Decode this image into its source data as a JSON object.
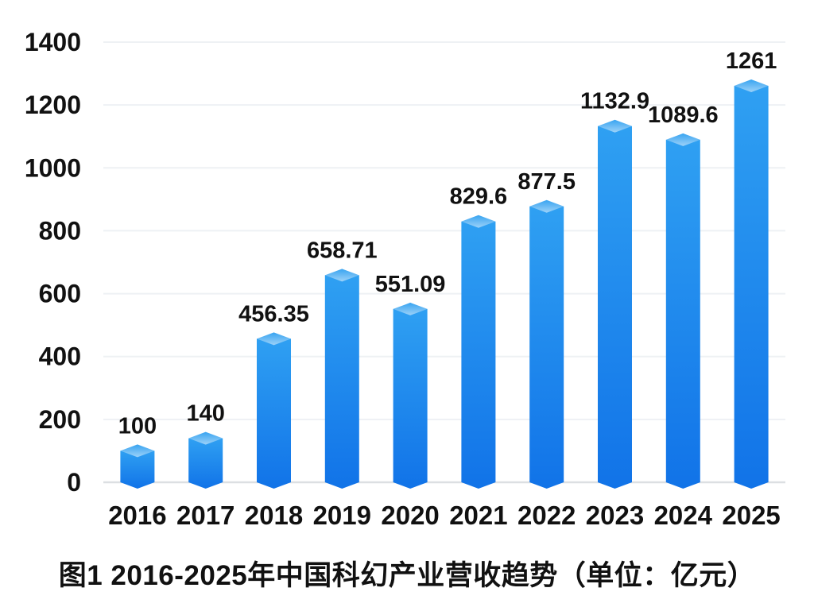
{
  "chart_data": {
    "type": "bar",
    "title": "图1 2016-2025年中国科幻产业营收趋势（单位：亿元）",
    "unit": "亿元",
    "categories": [
      "2016",
      "2017",
      "2018",
      "2019",
      "2020",
      "2021",
      "2022",
      "2023",
      "2024",
      "2025"
    ],
    "values": [
      100,
      140,
      456.35,
      658.71,
      551.09,
      829.6,
      877.5,
      1132.9,
      1089.6,
      1261
    ],
    "value_labels": [
      "100",
      "140",
      "456.35",
      "658.71",
      "551.09",
      "829.6",
      "877.5",
      "1132.9",
      "1089.6",
      "1261"
    ],
    "yticks": [
      0,
      200,
      400,
      600,
      800,
      1000,
      1200,
      1400
    ],
    "ylim": [
      0,
      1400
    ],
    "grid": true,
    "legend": "none",
    "xlabel": "",
    "ylabel": "",
    "colors": {
      "bar_body_top": "#2fa0f2",
      "bar_body_bottom": "#1173e8",
      "bar_cap_top": "#38a4f1",
      "bar_cap_bottom": "#9dd2f8",
      "gridline": "#eef1f4",
      "axis_line": "#dcdfe2",
      "text": "#111111",
      "background": "#ffffff"
    }
  }
}
